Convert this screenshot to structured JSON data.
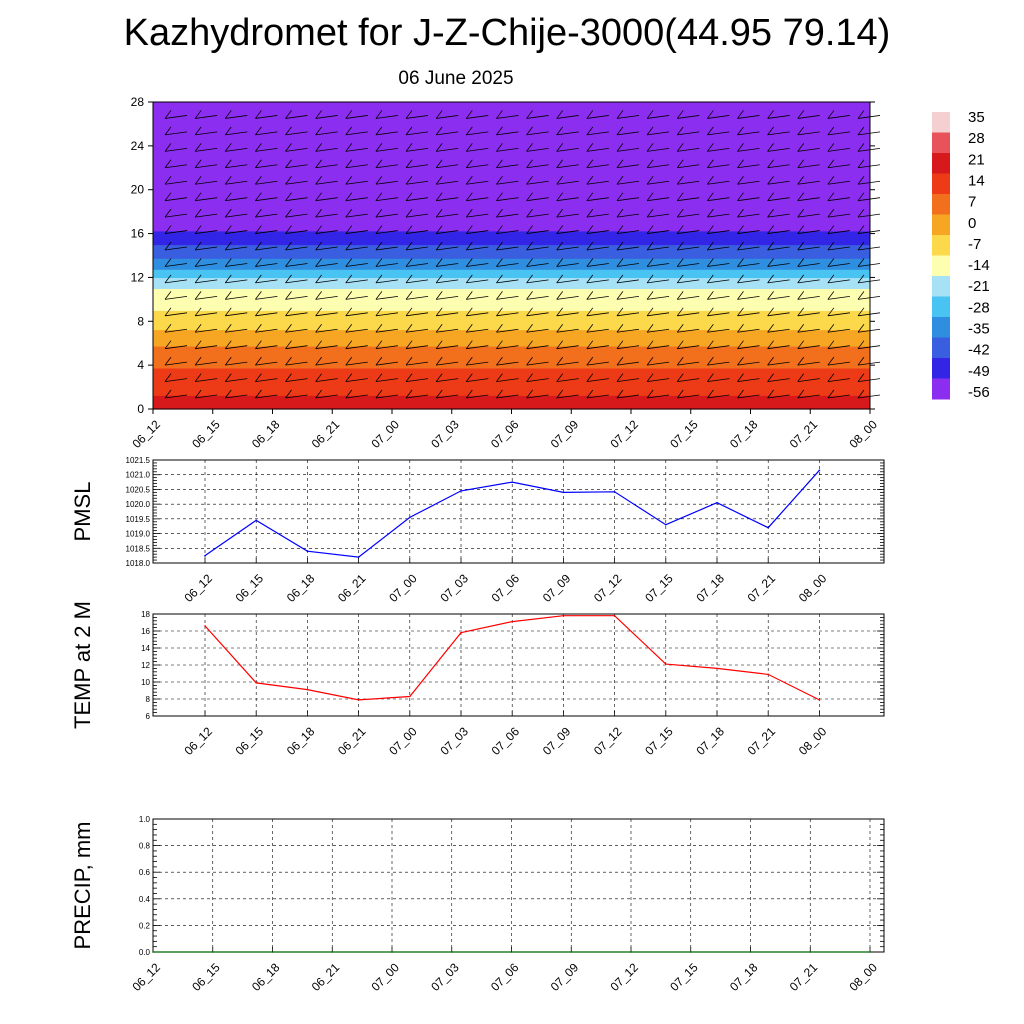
{
  "title": "Kazhydromet for J-Z-Chije-3000(44.95 79.14)",
  "subtitle": "06 June 2025",
  "chart_data": [
    {
      "type": "heatmap",
      "description_source": "time-height temperature cross-section with wind barbs",
      "x": [
        "06_12",
        "06_15",
        "06_18",
        "06_21",
        "07_00",
        "07_03",
        "07_06",
        "07_09",
        "07_12",
        "07_15",
        "07_18",
        "07_21",
        "08_00"
      ],
      "y_ticks": [
        0,
        4,
        8,
        12,
        16,
        20,
        24,
        28
      ],
      "ylim": [
        0,
        28
      ],
      "colorbar": {
        "labels": [
          "35",
          "28",
          "21",
          "14",
          "7",
          "0",
          "-7",
          "-14",
          "-21",
          "-28",
          "-35",
          "-42",
          "-49",
          "-56"
        ],
        "colors": [
          "#f5d0d0",
          "#e8525a",
          "#d7191c",
          "#ed3a17",
          "#f2701d",
          "#f6a623",
          "#fbd94a",
          "#fefeb0",
          "#a6e1f6",
          "#49c4f2",
          "#2f8ee0",
          "#3a5ee0",
          "#3225e6",
          "#8c2ef0"
        ]
      },
      "profile": [
        {
          "z": 0,
          "t": 24
        },
        {
          "z": 2,
          "t": 19
        },
        {
          "z": 5,
          "t": 10
        },
        {
          "z": 9,
          "t": -7
        },
        {
          "z": 11,
          "t": -13
        },
        {
          "z": 12.5,
          "t": -26
        },
        {
          "z": 14.5,
          "t": -40
        },
        {
          "z": 17,
          "t": -53
        },
        {
          "z": 19.5,
          "t": -58
        },
        {
          "z": 22,
          "t": -58
        },
        {
          "z": 28,
          "t": -62
        }
      ]
    },
    {
      "type": "line",
      "ylabel": "PMSL",
      "x": [
        "06_12",
        "06_15",
        "06_18",
        "06_21",
        "07_00",
        "07_03",
        "07_06",
        "07_09",
        "07_12",
        "07_15",
        "07_18",
        "07_21",
        "08_00"
      ],
      "y_ticks": [
        "1018.0",
        "1018.5",
        "1019.0",
        "1019.5",
        "1020.0",
        "1020.5",
        "1021.0",
        "1021.5"
      ],
      "ylim": [
        1018.0,
        1021.5
      ],
      "series": [
        {
          "color": "#0000ff",
          "values": [
            1018.25,
            1019.45,
            1018.4,
            1018.2,
            1019.55,
            1020.45,
            1020.75,
            1020.4,
            1020.42,
            1019.3,
            1020.05,
            1019.2,
            1021.15
          ]
        }
      ]
    },
    {
      "type": "line",
      "ylabel": "TEMP at 2 M",
      "x": [
        "06_12",
        "06_15",
        "06_18",
        "06_21",
        "07_00",
        "07_03",
        "07_06",
        "07_09",
        "07_12",
        "07_15",
        "07_18",
        "07_21",
        "08_00"
      ],
      "y_ticks": [
        "6",
        "8",
        "10",
        "12",
        "14",
        "16",
        "18"
      ],
      "ylim": [
        6,
        18
      ],
      "series": [
        {
          "color": "#ff0000",
          "values": [
            16.6,
            9.9,
            9.1,
            7.9,
            8.3,
            15.8,
            17.1,
            17.8,
            17.8,
            12.1,
            11.6,
            10.9,
            7.9
          ]
        }
      ]
    },
    {
      "type": "line",
      "ylabel": "PRECIP, mm",
      "x": [
        "06_12",
        "06_15",
        "06_18",
        "06_21",
        "07_00",
        "07_03",
        "07_06",
        "07_09",
        "07_12",
        "07_15",
        "07_18",
        "07_21",
        "08_00"
      ],
      "y_ticks": [
        "0.0",
        "0.2",
        "0.4",
        "0.6",
        "0.8",
        "1.0"
      ],
      "ylim": [
        0,
        1
      ],
      "series": [
        {
          "color": "#006400",
          "values": [
            0,
            0,
            0,
            0,
            0,
            0,
            0,
            0,
            0,
            0,
            0,
            0,
            0
          ]
        }
      ]
    }
  ]
}
